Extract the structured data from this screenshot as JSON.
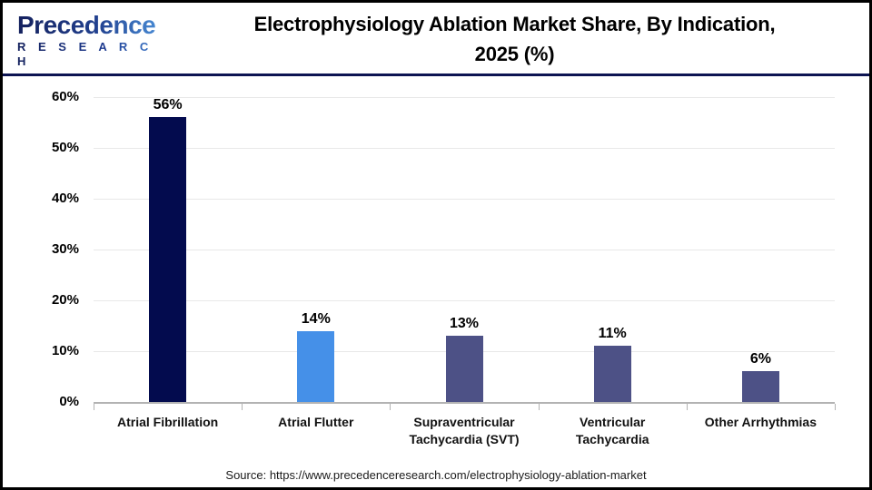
{
  "header": {
    "logo": {
      "wordmark": "Precedence",
      "subtext": "R E S E A R C H"
    },
    "title_line1": "Electrophysiology Ablation Market Share, By Indication,",
    "title_line2": "2025 (%)"
  },
  "footer": {
    "source": "Source: https://www.precedenceresearch.com/electrophysiology-ablation-market"
  },
  "chart_data": {
    "type": "bar",
    "title": "Electrophysiology Ablation Market Share, By Indication, 2025 (%)",
    "categories": [
      "Atrial Fibrillation",
      "Atrial Flutter",
      "Supraventricular Tachycardia (SVT)",
      "Ventricular Tachycardia",
      "Other Arrhythmias"
    ],
    "values": [
      56,
      14,
      13,
      11,
      6
    ],
    "value_labels": [
      "56%",
      "14%",
      "13%",
      "11%",
      "6%"
    ],
    "bar_colors": [
      "#030b4e",
      "#4590e8",
      "#4d5186",
      "#4d5186",
      "#4d5186"
    ],
    "xlabel": "",
    "ylabel": "",
    "ylim": [
      0,
      60
    ],
    "yticks": [
      0,
      10,
      20,
      30,
      40,
      50,
      60
    ],
    "ytick_labels": [
      "0%",
      "10%",
      "20%",
      "30%",
      "40%",
      "50%",
      "60%"
    ],
    "grid": "horizontal-light",
    "legend": "none",
    "colors": {
      "grid": "#e8e8e8",
      "axis": "#b3b3b3",
      "divider": "#0d1452",
      "text": "#000000"
    }
  }
}
